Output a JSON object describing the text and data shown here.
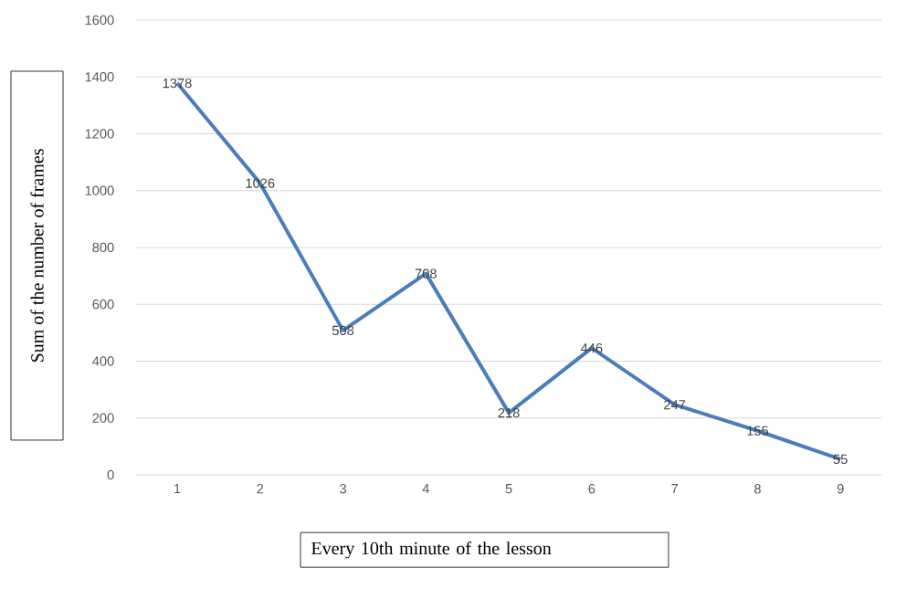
{
  "chart_data": {
    "type": "line",
    "xlabel": "Every 10th minute of the lesson",
    "ylabel": "Sum of the number of frames",
    "categories": [
      "1",
      "2",
      "3",
      "4",
      "5",
      "6",
      "7",
      "8",
      "9"
    ],
    "values": [
      1378,
      1026,
      508,
      708,
      218,
      446,
      247,
      155,
      55
    ],
    "color": "#4a7ebb",
    "ylim": [
      0,
      1600
    ],
    "yticks": [
      0,
      200,
      400,
      600,
      800,
      1000,
      1200,
      1400,
      1600
    ],
    "grid": "y",
    "data_labels": true,
    "marker": "none",
    "line_style": "solid"
  }
}
